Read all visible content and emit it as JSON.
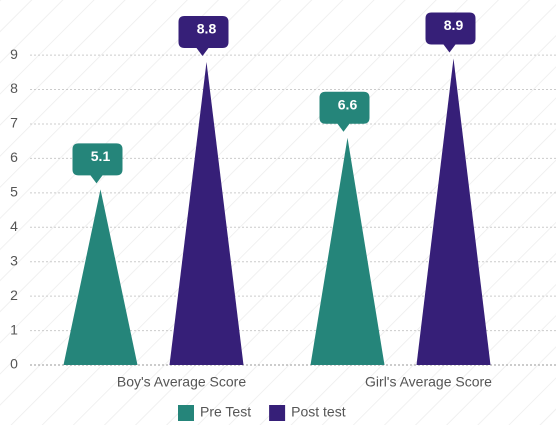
{
  "chart_data": {
    "type": "bar",
    "bar_shape": "triangle",
    "categories": [
      "Boy's Average Score",
      "Girl's Average Score"
    ],
    "series": [
      {
        "name": "Pre Test",
        "color": "#25857a",
        "values": [
          5.1,
          6.6
        ]
      },
      {
        "name": "Post test",
        "color": "#361f78",
        "values": [
          8.8,
          8.9
        ]
      }
    ],
    "ylim": [
      0,
      10.6
    ],
    "yticks": [
      0,
      1,
      2,
      3,
      4,
      5,
      6,
      7,
      8,
      9
    ],
    "grid": true,
    "legend": "bottom"
  }
}
